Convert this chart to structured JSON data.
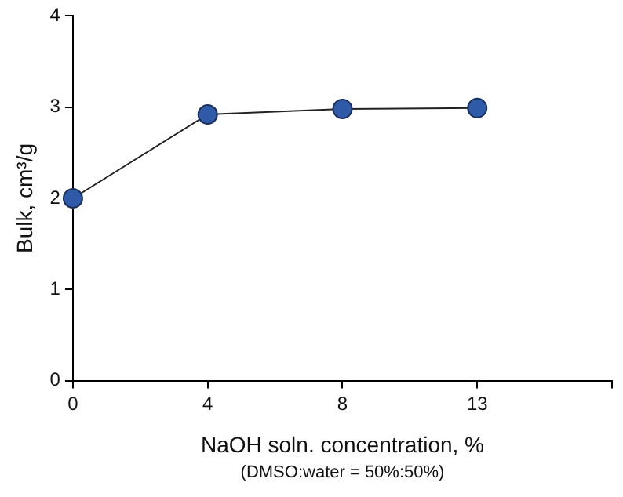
{
  "chart_data": {
    "type": "line",
    "xlabel": "NaOH soln. concentration, %",
    "ylabel": "Bulk, cm³/g",
    "annotations": [
      "(DMSO:water = 50%:50%)"
    ],
    "categories": [
      "0",
      "4",
      "8",
      "13",
      null
    ],
    "series": [
      {
        "color": "#2e5aa8",
        "values": [
          2.0,
          2.92,
          2.98,
          2.99,
          null
        ]
      }
    ],
    "ylim": [
      0,
      4
    ],
    "yticks": [
      0,
      1,
      2,
      3,
      4
    ],
    "grid": false,
    "legend": false,
    "marker": "circle",
    "line_style": "solid"
  }
}
